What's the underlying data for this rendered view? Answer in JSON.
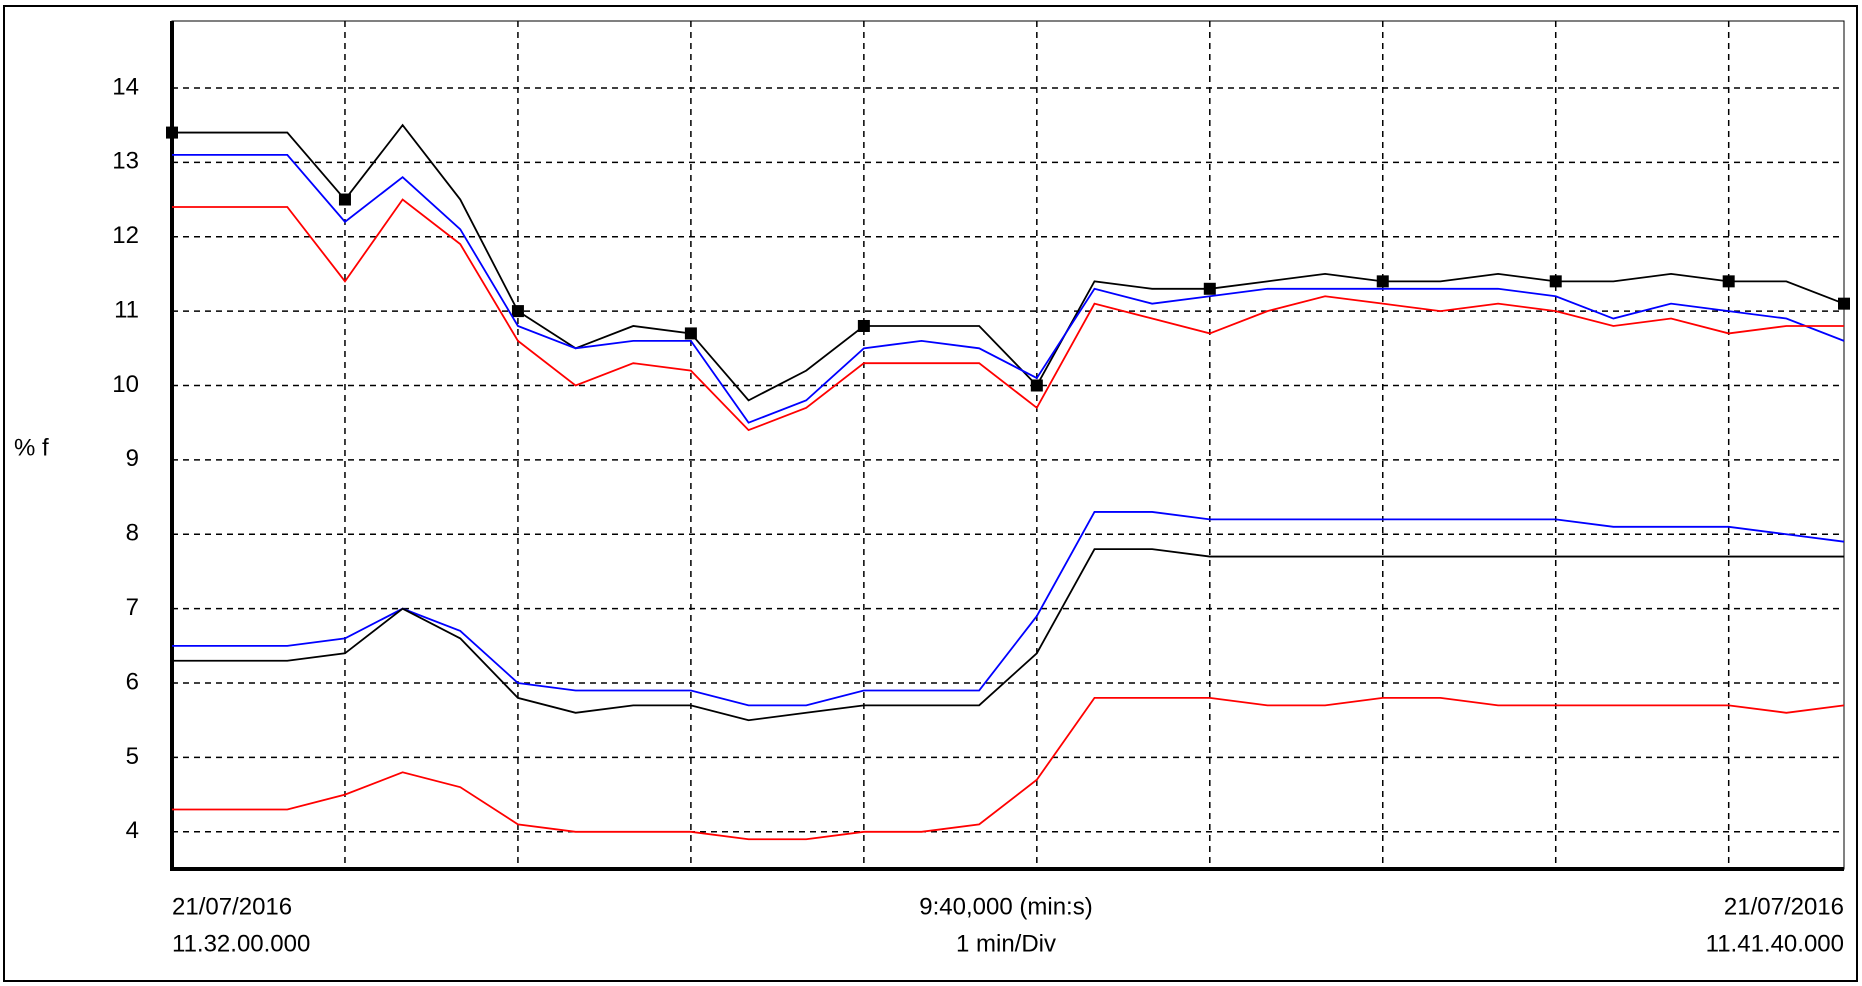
{
  "chart_data": {
    "type": "line",
    "y_label": "% f",
    "start_date": "21/07/2016",
    "start_time": "11.32.00.000",
    "span_label": "9:40,000 (min:s)",
    "div_label": "1 min/Div",
    "end_date": "21/07/2016",
    "end_time": "11.41.40.000",
    "x": [
      0,
      20,
      40,
      60,
      80,
      100,
      120,
      140,
      160,
      180,
      200,
      220,
      240,
      260,
      280,
      300,
      320,
      340,
      360,
      380,
      400,
      420,
      440,
      460,
      480,
      500,
      520,
      540,
      560,
      580
    ],
    "xlim": [
      0,
      580
    ],
    "xticks": [
      0,
      60,
      120,
      180,
      240,
      300,
      360,
      420,
      480,
      540
    ],
    "ylim": [
      3.5,
      14.9
    ],
    "yticks": [
      4,
      5,
      6,
      7,
      8,
      9,
      10,
      11,
      12,
      13,
      14
    ],
    "grid": true,
    "series": [
      {
        "color": "#000000",
        "marker": "square",
        "values": [
          13.4,
          13.4,
          13.4,
          12.5,
          13.5,
          12.5,
          11.0,
          10.5,
          10.8,
          10.7,
          9.8,
          10.2,
          10.8,
          10.8,
          10.8,
          10.0,
          11.4,
          11.3,
          11.3,
          11.4,
          11.5,
          11.4,
          11.4,
          11.5,
          11.4,
          11.4,
          11.5,
          11.4,
          11.4,
          11.1
        ]
      },
      {
        "color": "#0000ff",
        "values": [
          13.1,
          13.1,
          13.1,
          12.2,
          12.8,
          12.1,
          10.8,
          10.5,
          10.6,
          10.6,
          9.5,
          9.8,
          10.5,
          10.6,
          10.5,
          10.1,
          11.3,
          11.1,
          11.2,
          11.3,
          11.3,
          11.3,
          11.3,
          11.3,
          11.2,
          10.9,
          11.1,
          11.0,
          10.9,
          10.6
        ]
      },
      {
        "color": "#ff0000",
        "values": [
          12.4,
          12.4,
          12.4,
          11.4,
          12.5,
          11.9,
          10.6,
          10.0,
          10.3,
          10.2,
          9.4,
          9.7,
          10.3,
          10.3,
          10.3,
          9.7,
          11.1,
          10.9,
          10.7,
          11.0,
          11.2,
          11.1,
          11.0,
          11.1,
          11.0,
          10.8,
          10.9,
          10.7,
          10.8,
          10.8
        ]
      },
      {
        "color": "#0000ff",
        "values": [
          6.5,
          6.5,
          6.5,
          6.6,
          7.0,
          6.7,
          6.0,
          5.9,
          5.9,
          5.9,
          5.7,
          5.7,
          5.9,
          5.9,
          5.9,
          6.9,
          8.3,
          8.3,
          8.2,
          8.2,
          8.2,
          8.2,
          8.2,
          8.2,
          8.2,
          8.1,
          8.1,
          8.1,
          8.0,
          7.9
        ]
      },
      {
        "color": "#000000",
        "values": [
          6.3,
          6.3,
          6.3,
          6.4,
          7.0,
          6.6,
          5.8,
          5.6,
          5.7,
          5.7,
          5.5,
          5.6,
          5.7,
          5.7,
          5.7,
          6.4,
          7.8,
          7.8,
          7.7,
          7.7,
          7.7,
          7.7,
          7.7,
          7.7,
          7.7,
          7.7,
          7.7,
          7.7,
          7.7,
          7.7
        ]
      },
      {
        "color": "#ff0000",
        "values": [
          4.3,
          4.3,
          4.3,
          4.5,
          4.8,
          4.6,
          4.1,
          4.0,
          4.0,
          4.0,
          3.9,
          3.9,
          4.0,
          4.0,
          4.1,
          4.7,
          5.8,
          5.8,
          5.8,
          5.7,
          5.7,
          5.8,
          5.8,
          5.7,
          5.7,
          5.7,
          5.7,
          5.7,
          5.6,
          5.7
        ]
      }
    ]
  }
}
